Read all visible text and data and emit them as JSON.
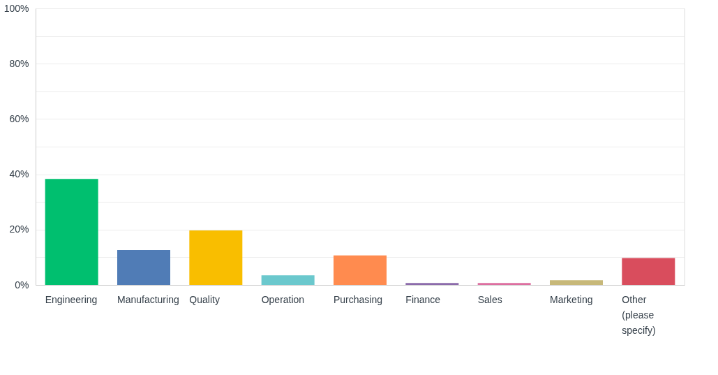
{
  "chart_data": {
    "type": "bar",
    "categories": [
      "Engineering",
      "Manufacturing",
      "Quality",
      "Operation",
      "Purchasing",
      "Finance",
      "Sales",
      "Marketing",
      "Other (please specify)"
    ],
    "values": [
      38.3,
      12.6,
      19.7,
      3.5,
      10.7,
      0.7,
      0.7,
      1.7,
      9.7
    ],
    "colors": [
      "#00bf6f",
      "#507cb6",
      "#f9be00",
      "#6bc8cd",
      "#ff8b4f",
      "#8c6bab",
      "#dd6fa0",
      "#c7b879",
      "#d94d5d"
    ],
    "ylim": [
      0,
      100
    ],
    "yticks": [
      {
        "value": 0,
        "label": "0%"
      },
      {
        "value": 10,
        "label": null
      },
      {
        "value": 20,
        "label": "20%"
      },
      {
        "value": 30,
        "label": null
      },
      {
        "value": 40,
        "label": "40%"
      },
      {
        "value": 50,
        "label": null
      },
      {
        "value": 60,
        "label": "60%"
      },
      {
        "value": 70,
        "label": null
      },
      {
        "value": 80,
        "label": "80%"
      },
      {
        "value": 90,
        "label": null
      },
      {
        "value": 100,
        "label": "100%"
      }
    ],
    "grid": "y",
    "legend": false
  }
}
